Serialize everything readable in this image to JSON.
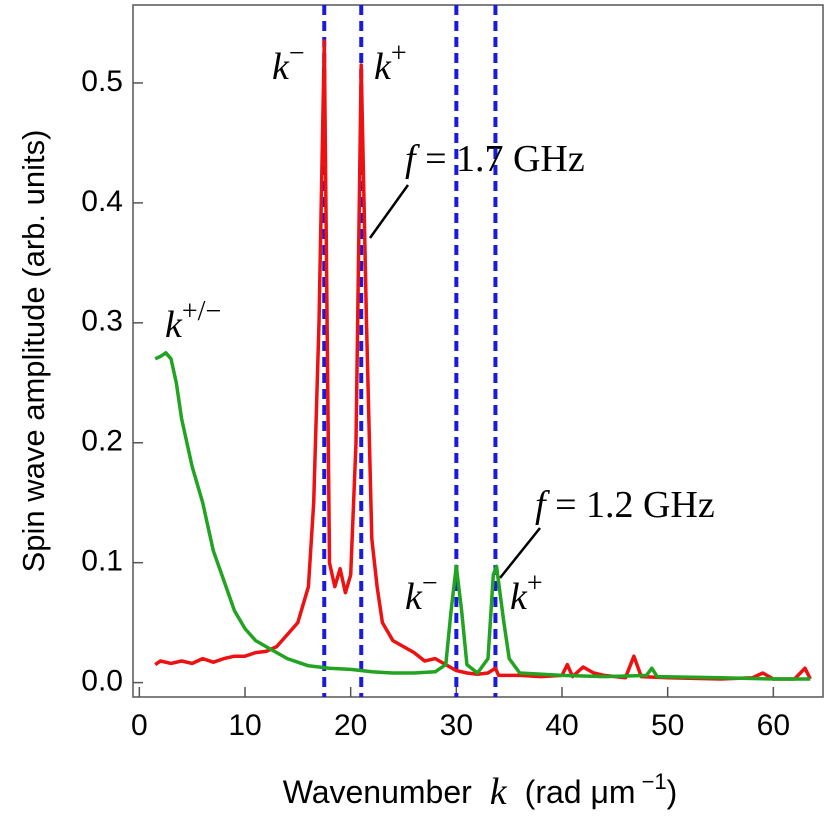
{
  "chart_data": {
    "type": "line",
    "xlabel": [
      "Wavenumber",
      "k",
      "(rad μm",
      "−1"
    ],
    "ylabel": "Spin wave amplitude (arb. units)",
    "xlim": [
      -0.6,
      64.7
    ],
    "ylim": [
      -0.012,
      0.565
    ],
    "xticks": [
      0,
      10,
      20,
      30,
      40,
      50,
      60
    ],
    "yticks": [
      {
        "value": 0,
        "label": "0.0"
      },
      0.1,
      0.2,
      0.3,
      0.4,
      0.5
    ],
    "vlines": [
      17.5,
      21,
      30,
      33.7
    ],
    "vline_color": "#1a1adb",
    "annotations": [
      {
        "text": "k",
        "sup": "−"
      },
      {
        "text": "k",
        "sup": "+"
      },
      {
        "text": "f",
        "rest": " = 1.7 GHz"
      },
      {
        "text": "k",
        "sup": "+/−"
      },
      {
        "text": "f",
        "rest": " = 1.2 GHz"
      },
      {
        "text": "k",
        "sup": "−"
      },
      {
        "text": "k",
        "sup": "+"
      }
    ],
    "series": [
      {
        "color": "#ee1111",
        "x": [
          1.5,
          2,
          3,
          4,
          5,
          6,
          7,
          8,
          9,
          10,
          11,
          12,
          13,
          14,
          15,
          16,
          16.5,
          17,
          17.5,
          18,
          18.5,
          19,
          19.5,
          20,
          20.5,
          21,
          21.5,
          22,
          22.5,
          23,
          24,
          25,
          26,
          27,
          28,
          29,
          30,
          31,
          32,
          33,
          33.7,
          34,
          36,
          38,
          40,
          40.5,
          41,
          42,
          43,
          44,
          46,
          46.8,
          47.5,
          50,
          55,
          58,
          59,
          60,
          62,
          63,
          63.5
        ],
        "values": [
          0.015,
          0.018,
          0.016,
          0.018,
          0.016,
          0.02,
          0.017,
          0.02,
          0.022,
          0.022,
          0.025,
          0.026,
          0.03,
          0.04,
          0.05,
          0.08,
          0.15,
          0.3,
          0.535,
          0.1,
          0.08,
          0.095,
          0.075,
          0.09,
          0.2,
          0.515,
          0.3,
          0.12,
          0.08,
          0.05,
          0.035,
          0.03,
          0.025,
          0.018,
          0.02,
          0.015,
          0.01,
          0.008,
          0.007,
          0.008,
          0.012,
          0.006,
          0.006,
          0.005,
          0.006,
          0.015,
          0.005,
          0.013,
          0.008,
          0.006,
          0.004,
          0.022,
          0.005,
          0.004,
          0.003,
          0.004,
          0.008,
          0.003,
          0.003,
          0.012,
          0.003
        ]
      },
      {
        "color": "#22a322",
        "x": [
          1.5,
          2,
          2.5,
          3,
          3.5,
          4,
          5,
          6,
          7,
          8,
          9,
          10,
          11,
          12,
          13,
          14,
          15,
          16,
          18,
          20,
          22,
          24,
          26,
          28,
          29,
          29.5,
          30,
          30.5,
          31,
          32,
          33,
          33.5,
          33.8,
          34.5,
          35,
          36,
          40,
          44,
          48,
          48.5,
          49,
          55,
          60,
          63.5
        ],
        "values": [
          0.27,
          0.272,
          0.275,
          0.27,
          0.25,
          0.22,
          0.18,
          0.15,
          0.11,
          0.085,
          0.06,
          0.045,
          0.035,
          0.03,
          0.025,
          0.02,
          0.017,
          0.014,
          0.012,
          0.011,
          0.009,
          0.008,
          0.008,
          0.009,
          0.015,
          0.06,
          0.097,
          0.06,
          0.015,
          0.008,
          0.02,
          0.09,
          0.097,
          0.05,
          0.02,
          0.008,
          0.006,
          0.005,
          0.006,
          0.012,
          0.005,
          0.004,
          0.003,
          0.003
        ]
      }
    ]
  }
}
